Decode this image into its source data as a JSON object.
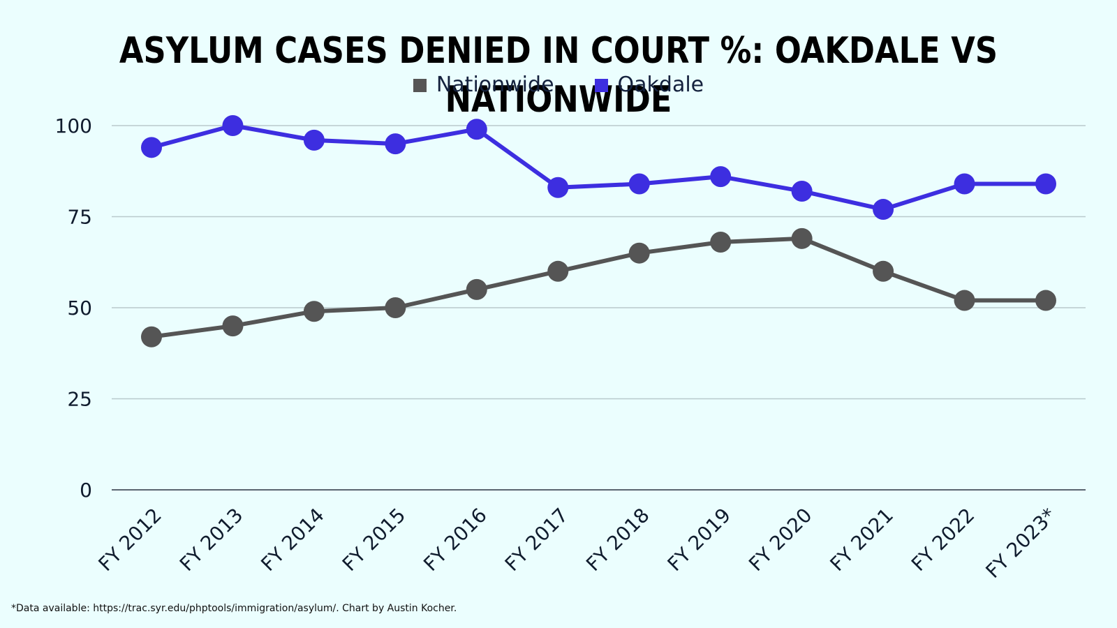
{
  "chart_data": {
    "type": "line",
    "title": "ASYLUM CASES DENIED IN COURT %: OAKDALE VS NATIONWIDE",
    "categories": [
      "FY 2012",
      "FY 2013",
      "FY 2014",
      "FY 2015",
      "FY 2016",
      "FY 2017",
      "FY 2018",
      "FY 2019",
      "FY 2020",
      "FY 2021",
      "FY 2022",
      "FY 2023*"
    ],
    "series": [
      {
        "name": "Nationwide",
        "color": "#555555",
        "values": [
          42,
          45,
          49,
          50,
          55,
          60,
          65,
          68,
          69,
          60,
          52,
          52
        ]
      },
      {
        "name": "Oakdale",
        "color": "#3d2ee0",
        "values": [
          94,
          100,
          96,
          95,
          99,
          83,
          84,
          86,
          82,
          77,
          84,
          84
        ]
      }
    ],
    "ylim": [
      0,
      100
    ],
    "yticks": [
      0,
      25,
      50,
      75,
      100
    ],
    "xlabel": "",
    "ylabel": "",
    "grid": true,
    "legend_position": "top-center"
  },
  "footnote": "*Data available: https://trac.syr.edu/phptools/immigration/asylum/. Chart by Austin Kocher."
}
